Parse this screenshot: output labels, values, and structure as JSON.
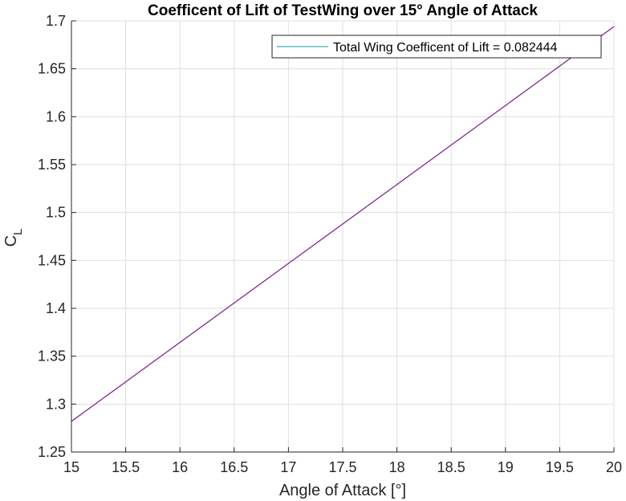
{
  "chart_data": {
    "type": "line",
    "title": "Coefficent of Lift of TestWing over 15° Angle of Attack",
    "xlabel": "Angle of Attack [°]",
    "ylabel_main": "C",
    "ylabel_sub": "L",
    "xlim": [
      15,
      20
    ],
    "ylim": [
      1.25,
      1.7
    ],
    "xticks": [
      15,
      15.5,
      16,
      16.5,
      17,
      17.5,
      18,
      18.5,
      19,
      19.5,
      20
    ],
    "yticks": [
      1.25,
      1.3,
      1.35,
      1.4,
      1.45,
      1.5,
      1.55,
      1.6,
      1.65,
      1.7
    ],
    "xtick_labels": [
      "15",
      "15.5",
      "16",
      "16.5",
      "17",
      "17.5",
      "18",
      "18.5",
      "19",
      "19.5",
      "20"
    ],
    "ytick_labels": [
      "1.25",
      "1.3",
      "1.35",
      "1.4",
      "1.45",
      "1.5",
      "1.55",
      "1.6",
      "1.65",
      "1.7"
    ],
    "grid": true,
    "legend_position": "top-right",
    "series": [
      {
        "name": "Total Wing Coefficent of Lift = 0.082444",
        "color": "#7e2f8e",
        "legend_color": "#0f9aa0",
        "x": [
          15,
          20
        ],
        "y": [
          1.282,
          1.694
        ]
      }
    ]
  }
}
